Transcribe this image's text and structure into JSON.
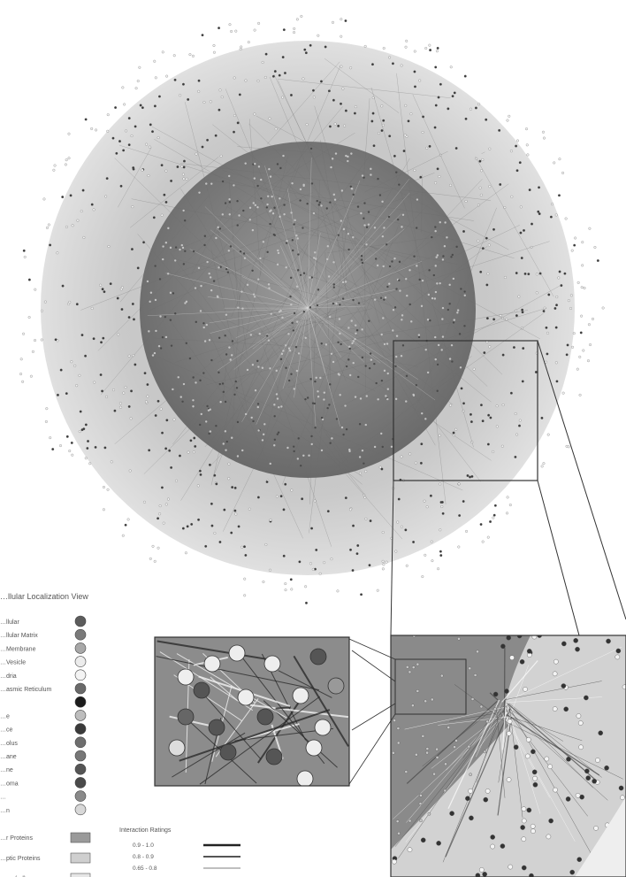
{
  "legend": {
    "title": "…llular Localization View",
    "compartments": [
      {
        "label": "…llular",
        "color": "#5c5c5c"
      },
      {
        "label": "…llular Matrix",
        "color": "#7a7a7a"
      },
      {
        "label": "…Membrane",
        "color": "#a8a8a8"
      },
      {
        "label": "…Vesicle",
        "color": "#ececec"
      },
      {
        "label": "…dria",
        "color": "#f4f4f4"
      },
      {
        "label": "…asmic Reticulum",
        "color": "#6a6a6a"
      },
      {
        "label": "",
        "color": "#1c1c1c"
      },
      {
        "label": "…e",
        "color": "#bdbdbd"
      },
      {
        "label": "…ce",
        "color": "#3a3a3a"
      },
      {
        "label": "…olus",
        "color": "#6e6e6e"
      },
      {
        "label": "…ane",
        "color": "#777777"
      },
      {
        "label": "…ne",
        "color": "#555555"
      },
      {
        "label": "…oma",
        "color": "#4a4a4a"
      },
      {
        "label": "…",
        "color": "#8a8a8a"
      },
      {
        "label": "…n",
        "color": "#d8d8d8"
      }
    ],
    "protein_types": [
      {
        "label": "…r Proteins",
        "color": "#9a9a9a"
      },
      {
        "label": "…ptic Proteins",
        "color": "#cfcfcf"
      },
      {
        "label": "…ne (ed)",
        "color": "#e6e6e6"
      }
    ]
  },
  "interaction_ratings": {
    "title": "Interaction Ratings",
    "items": [
      {
        "label": "0.9 - 1.0",
        "color": "#222222"
      },
      {
        "label": "0.8 - 0.9",
        "color": "#555555"
      },
      {
        "label": "0.65 - 0.8",
        "color": "#999999"
      }
    ]
  },
  "colors": {
    "outer_ring": "#cfcfcf",
    "inner_core": "#7d7d7d",
    "node_dark": "#3a3a3a",
    "node_light": "#e8e8e8",
    "edge": "#6b6b6b",
    "zoom_box": "#333333"
  }
}
